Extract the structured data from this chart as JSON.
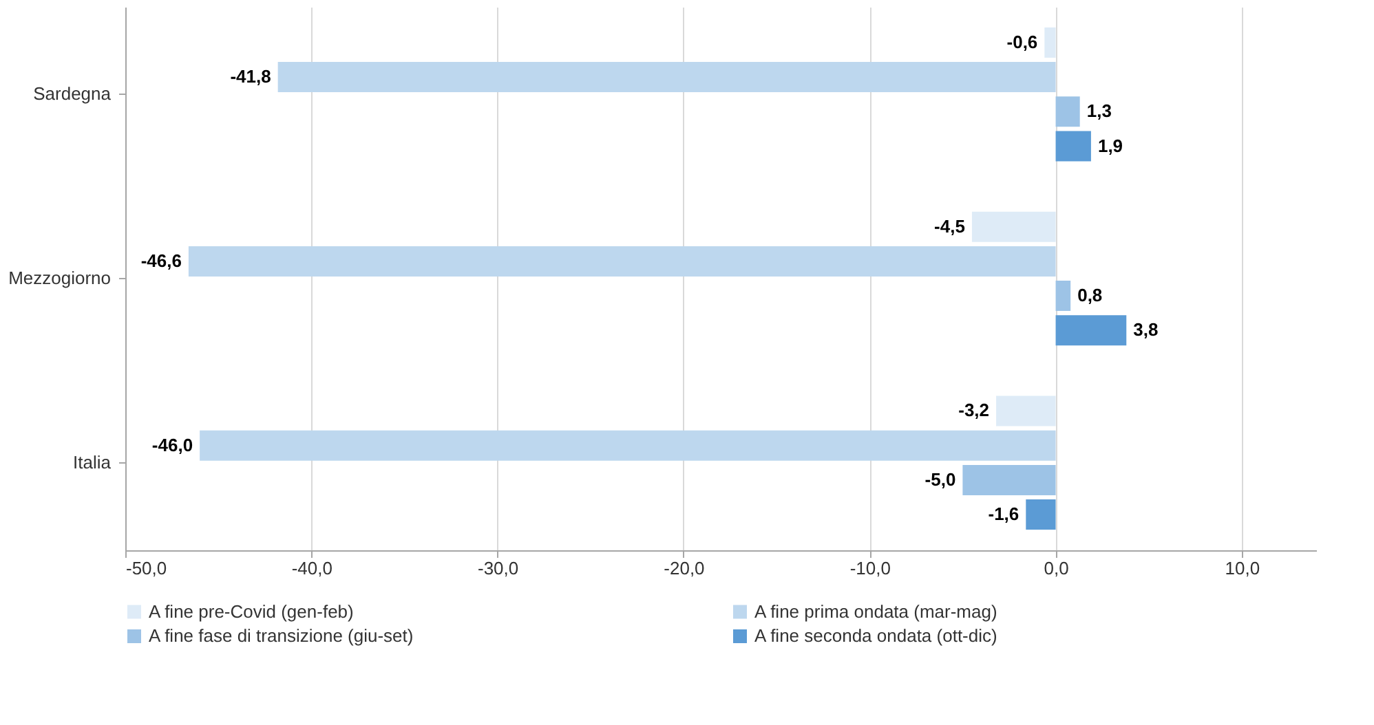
{
  "chart_data": {
    "type": "bar",
    "orientation": "horizontal",
    "categories": [
      "Sardegna",
      "Mezzogiorno",
      "Italia"
    ],
    "series": [
      {
        "name": "A fine pre-Covid (gen-feb)",
        "color": "#deebf7",
        "values": [
          -0.6,
          -4.5,
          -3.2
        ],
        "value_labels": [
          "-0,6",
          "-4,5",
          "-3,2"
        ]
      },
      {
        "name": "A fine prima ondata (mar-mag)",
        "color": "#bdd7ee",
        "values": [
          -41.8,
          -46.6,
          -46.0
        ],
        "value_labels": [
          "-41,8",
          "-46,6",
          "-46,0"
        ]
      },
      {
        "name": "A fine fase di transizione (giu-set)",
        "color": "#9dc3e6",
        "values": [
          1.3,
          0.8,
          -5.0
        ],
        "value_labels": [
          "1,3",
          "0,8",
          "-5,0"
        ]
      },
      {
        "name": "A fine seconda ondata (ott-dic)",
        "color": "#5b9bd5",
        "values": [
          1.9,
          3.8,
          -1.6
        ],
        "value_labels": [
          "1,9",
          "3,8",
          "-1,6"
        ]
      }
    ],
    "xlim": [
      -50,
      14
    ],
    "xticks": [
      {
        "value": -50,
        "label": "-50,0"
      },
      {
        "value": -40,
        "label": "-40,0"
      },
      {
        "value": -30,
        "label": "-30,0"
      },
      {
        "value": -20,
        "label": "-20,0"
      },
      {
        "value": -10,
        "label": "-10,0"
      },
      {
        "value": 0,
        "label": "0,0"
      },
      {
        "value": 10,
        "label": "10,0"
      }
    ],
    "grid": "x",
    "legend": "bottom"
  }
}
